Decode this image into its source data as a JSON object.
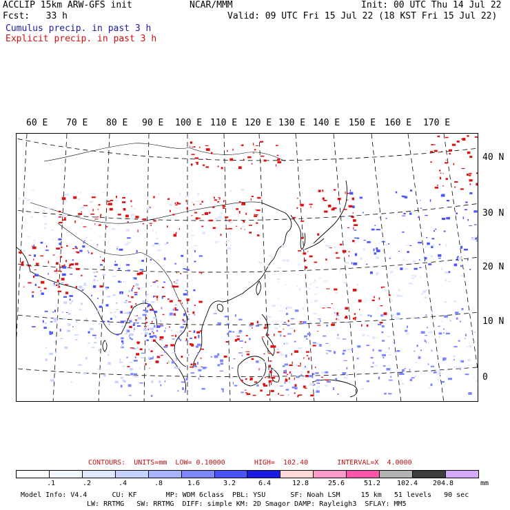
{
  "header": {
    "title": "ACCLIP 15km ARW-GFS init",
    "fcst": "Fcst:   33 h",
    "center": "NCAR/MMM",
    "init": "Init: 00 UTC Thu 14 Jul 22",
    "valid": "Valid: 09 UTC Fri 15 Jul 22 (18 KST Fri 15 Jul 22)"
  },
  "legend": {
    "cumulus": "Cumulus precip. in past 3 h",
    "explicit": "Explicit precip. in past 3 h",
    "cumulus_color": "#2020c0",
    "explicit_color": "#e01010"
  },
  "map": {
    "lon_labels": [
      "60 E",
      "70 E",
      "80 E",
      "90 E",
      "100 E",
      "110 E",
      "120 E",
      "130 E",
      "140 E",
      "150 E",
      "160 E",
      "170 E"
    ],
    "lat_labels": [
      "40 N",
      "30 N",
      "20 N",
      "10 N",
      "0"
    ]
  },
  "contours_line": "CONTOURS:  UNITS=mm  LOW= 0.10000       HIGH=  102.40       INTERVAL=X  4.0000",
  "colorbar": {
    "colors": [
      "#ffffff",
      "#f2f6ff",
      "#e0e8ff",
      "#c6d2ff",
      "#a8b4ff",
      "#7c86ff",
      "#4a54ff",
      "#1a1ae6",
      "#ffd8d8",
      "#ff99cc",
      "#ff55aa",
      "#b4b4b4",
      "#3c3c3c",
      "#d6aaff"
    ],
    "ticks": [
      ".1",
      ".2",
      ".4",
      ".8",
      "1.6",
      "3.2",
      "6.4",
      "12.8",
      "25.6",
      "51.2",
      "102.4",
      "204.8"
    ],
    "units": "mm"
  },
  "model_info": {
    "line1": "Model Info: V4.4      CU: KF       MP: WDM 6class  PBL: YSU      SF: Noah LSM     15 km   51 levels   90 sec",
    "line2": "LW: RRTMG   SW: RRTMG  DIFF: simple KM: 2D Smagor DAMP: Rayleigh3  SFLAY: MM5"
  }
}
